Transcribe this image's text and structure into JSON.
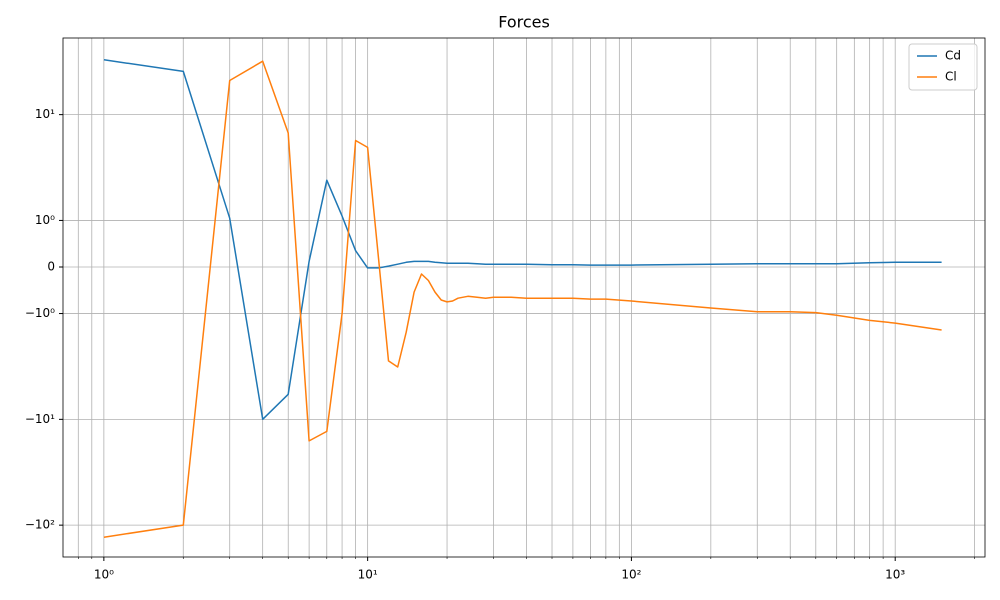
{
  "chart_data": {
    "type": "line",
    "title": "Forces",
    "xscale": "log",
    "yscale": "symlog",
    "grid": true,
    "legend": "upper right",
    "x": [
      1,
      2,
      3,
      4,
      5,
      6,
      7,
      8,
      9,
      10,
      11,
      12,
      13,
      14,
      15,
      16,
      17,
      18,
      19,
      20,
      21,
      22,
      24,
      26,
      28,
      30,
      35,
      40,
      50,
      60,
      70,
      80,
      100,
      200,
      300,
      400,
      500,
      600,
      800,
      1000,
      1500
    ],
    "series": [
      {
        "name": "Cd",
        "color": "#1f77b4",
        "values": [
          33,
          25.6,
          1.05,
          -10,
          -5.8,
          0.12,
          2.4,
          1.1,
          0.35,
          -0.02,
          -0.02,
          0.02,
          0.06,
          0.1,
          0.12,
          0.12,
          0.12,
          0.1,
          0.09,
          0.08,
          0.08,
          0.08,
          0.08,
          0.07,
          0.06,
          0.06,
          0.06,
          0.06,
          0.05,
          0.05,
          0.04,
          0.04,
          0.04,
          0.06,
          0.07,
          0.07,
          0.07,
          0.07,
          0.09,
          0.1,
          0.1
        ]
      },
      {
        "name": "Cl",
        "color": "#ff7f0e",
        "values": [
          -130,
          -100,
          21,
          32,
          6.7,
          -16,
          -13,
          -1,
          5.7,
          4.9,
          0.17,
          -2.8,
          -3.2,
          -1.5,
          -0.54,
          -0.15,
          -0.29,
          -0.54,
          -0.71,
          -0.75,
          -0.73,
          -0.67,
          -0.63,
          -0.65,
          -0.67,
          -0.65,
          -0.65,
          -0.67,
          -0.67,
          -0.67,
          -0.69,
          -0.69,
          -0.73,
          -0.88,
          -0.96,
          -0.96,
          -0.98,
          -1.04,
          -1.16,
          -1.23,
          -1.43
        ]
      }
    ],
    "xlim": [
      0.7,
      2190
    ],
    "xticks": [
      {
        "value": 1,
        "label": "10⁰"
      },
      {
        "value": 10,
        "label": "10¹"
      },
      {
        "value": 100,
        "label": "10²"
      },
      {
        "value": 1000,
        "label": "10³"
      }
    ],
    "xticks_minor": [
      0.8,
      0.9,
      2,
      3,
      4,
      5,
      6,
      7,
      8,
      9,
      20,
      30,
      40,
      50,
      60,
      70,
      80,
      90,
      200,
      300,
      400,
      500,
      600,
      700,
      800,
      900,
      2000
    ],
    "ylim": [
      -200,
      53
    ],
    "yticks": [
      {
        "value": -100,
        "label": "−10²"
      },
      {
        "value": -10,
        "label": "−10¹"
      },
      {
        "value": -1,
        "label": "−10⁰"
      },
      0,
      {
        "value": 1,
        "label": "10⁰"
      },
      {
        "value": 10,
        "label": "10¹"
      }
    ]
  }
}
